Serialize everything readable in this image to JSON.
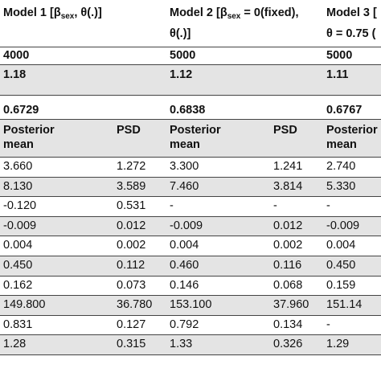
{
  "header": {
    "cells": [
      {
        "lines": [
          [
            "Model 1 [β",
            "sex",
            ", θ(.)]"
          ]
        ]
      },
      {
        "lines": [
          [
            "Model 2 [β",
            "sex",
            " = 0(fixed),"
          ],
          [
            "θ(.)]"
          ]
        ]
      },
      {
        "lines": [
          [
            "Model 3 ["
          ],
          [
            "θ = 0.75 ("
          ]
        ]
      }
    ]
  },
  "table": {
    "rows": [
      [
        "4000",
        null,
        "5000",
        null,
        "5000"
      ],
      [
        "1.18",
        null,
        "1.12",
        null,
        "1.11"
      ],
      [
        "0.6729",
        null,
        "0.6838",
        null,
        "0.6767"
      ],
      [
        "Posterior mean",
        "PSD",
        "Posterior mean",
        "PSD",
        "Posterior mean"
      ],
      [
        "3.660",
        "1.272",
        "3.300",
        "1.241",
        "2.740"
      ],
      [
        "8.130",
        "3.589",
        "7.460",
        "3.814",
        "5.330"
      ],
      [
        "-0.120",
        "0.531",
        "-",
        "-",
        "-"
      ],
      [
        "-0.009",
        "0.012",
        "-0.009",
        "0.012",
        "-0.009"
      ],
      [
        "0.004",
        "0.002",
        "0.004",
        "0.002",
        "0.004"
      ],
      [
        "0.450",
        "0.112",
        "0.460",
        "0.116",
        "0.450"
      ],
      [
        "0.162",
        "0.073",
        "0.146",
        "0.068",
        "0.159"
      ],
      [
        "149.800",
        "36.780",
        "153.100",
        "37.960",
        "151.14"
      ],
      [
        "0.831",
        "0.127",
        "0.792",
        "0.134",
        "-"
      ],
      [
        "1.28",
        "0.315",
        "1.33",
        "0.326",
        "1.29"
      ]
    ]
  }
}
